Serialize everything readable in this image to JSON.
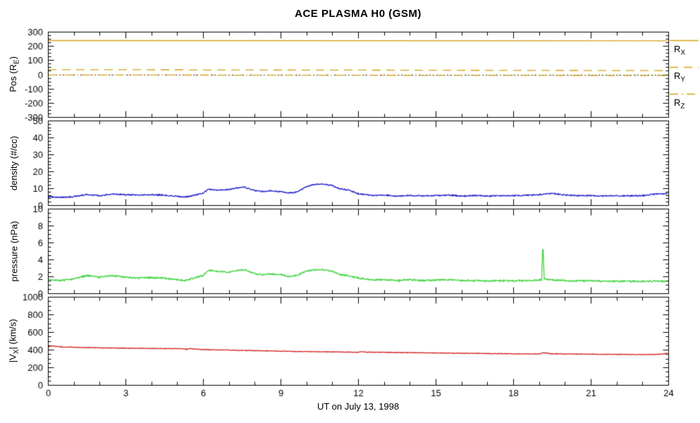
{
  "chart_data": {
    "type": "line",
    "title": "ACE PLASMA H0 (GSM)",
    "xlabel": "UT on July 13, 1998",
    "grid": false,
    "legend_position": "right-of-top-panel",
    "x": {
      "min": 0,
      "max": 24,
      "ticks": [
        0,
        3,
        6,
        9,
        12,
        15,
        18,
        21,
        24
      ],
      "minor_step": 1
    },
    "panels": [
      {
        "ylabel": {
          "pre": "Pos (R",
          "sub": "E",
          "post": ")"
        },
        "ylim": [
          -300,
          300
        ],
        "yticks": [
          -300,
          -200,
          -100,
          0,
          100,
          200,
          300
        ],
        "yminor": 25,
        "legend": [
          {
            "pre": "R",
            "sub": "X"
          },
          {
            "pre": "R",
            "sub": "Y"
          },
          {
            "pre": "R",
            "sub": "Z"
          }
        ],
        "ref_lines": [
          {
            "y": 0,
            "style": "dotted",
            "color": "#222222"
          }
        ],
        "series": [
          {
            "name": "R_X",
            "color": "#d4a017",
            "style": "solid",
            "noise": 0,
            "points": [
              [
                0,
                238
              ],
              [
                24,
                236
              ]
            ]
          },
          {
            "name": "R_Y",
            "color": "#d4a017",
            "style": "dashed",
            "noise": 0,
            "points": [
              [
                0,
                33
              ],
              [
                6,
                32
              ],
              [
                12,
                30
              ],
              [
                18,
                28
              ],
              [
                24,
                26
              ]
            ]
          },
          {
            "name": "R_Z",
            "color": "#d4a017",
            "style": "dashdot",
            "noise": 0,
            "points": [
              [
                0,
                -4
              ],
              [
                24,
                -8
              ]
            ]
          }
        ]
      },
      {
        "ylabel": {
          "pre": "density (#/cc)"
        },
        "ylim": [
          0,
          50
        ],
        "yticks": [
          0,
          10,
          20,
          30,
          40,
          50
        ],
        "yminor": 2,
        "series": [
          {
            "name": "density",
            "color": "#2222cc",
            "style": "solid",
            "noise": 0.35,
            "points": [
              [
                0,
                5.0
              ],
              [
                0.5,
                4.6
              ],
              [
                1,
                5.0
              ],
              [
                1.5,
                6.3
              ],
              [
                2,
                5.6
              ],
              [
                2.5,
                6.6
              ],
              [
                3,
                6.2
              ],
              [
                3.5,
                6.0
              ],
              [
                4,
                6.2
              ],
              [
                4.5,
                6.0
              ],
              [
                5,
                5.2
              ],
              [
                5.3,
                4.8
              ],
              [
                5.6,
                5.6
              ],
              [
                6,
                7.0
              ],
              [
                6.2,
                9.3
              ],
              [
                6.5,
                9.0
              ],
              [
                7,
                9.2
              ],
              [
                7.3,
                10.2
              ],
              [
                7.6,
                10.6
              ],
              [
                8,
                8.6
              ],
              [
                8.3,
                8.1
              ],
              [
                8.6,
                8.5
              ],
              [
                9,
                8.0
              ],
              [
                9.3,
                7.2
              ],
              [
                9.6,
                7.6
              ],
              [
                10,
                10.8
              ],
              [
                10.3,
                12.2
              ],
              [
                10.6,
                12.6
              ],
              [
                11,
                11.6
              ],
              [
                11.3,
                9.6
              ],
              [
                11.6,
                9.0
              ],
              [
                12,
                6.8
              ],
              [
                12.5,
                5.8
              ],
              [
                13,
                6.0
              ],
              [
                13.5,
                5.3
              ],
              [
                14,
                5.8
              ],
              [
                14.5,
                5.5
              ],
              [
                15,
                5.6
              ],
              [
                15.5,
                6.0
              ],
              [
                16,
                5.4
              ],
              [
                16.5,
                5.7
              ],
              [
                17,
                5.4
              ],
              [
                17.5,
                5.6
              ],
              [
                18,
                5.5
              ],
              [
                18.5,
                5.8
              ],
              [
                19,
                6.2
              ],
              [
                19.5,
                7.0
              ],
              [
                20,
                6.0
              ],
              [
                20.5,
                5.6
              ],
              [
                21,
                5.7
              ],
              [
                21.5,
                5.4
              ],
              [
                22,
                5.6
              ],
              [
                22.5,
                5.5
              ],
              [
                23,
                5.6
              ],
              [
                23.5,
                6.6
              ],
              [
                24,
                6.8
              ]
            ]
          }
        ]
      },
      {
        "ylabel": {
          "pre": "pressure (nPa)"
        },
        "ylim": [
          0,
          10
        ],
        "yticks": [
          0,
          2,
          4,
          6,
          8,
          10
        ],
        "yminor": 0.5,
        "series": [
          {
            "name": "pressure",
            "color": "#3fd43f",
            "style": "solid",
            "noise": 0.09,
            "points": [
              [
                0,
                1.6
              ],
              [
                0.5,
                1.5
              ],
              [
                1,
                1.7
              ],
              [
                1.5,
                2.1
              ],
              [
                2,
                1.9
              ],
              [
                2.5,
                2.1
              ],
              [
                3,
                1.9
              ],
              [
                3.5,
                1.8
              ],
              [
                4,
                1.85
              ],
              [
                4.5,
                1.8
              ],
              [
                5,
                1.6
              ],
              [
                5.3,
                1.5
              ],
              [
                5.6,
                1.75
              ],
              [
                6,
                2.1
              ],
              [
                6.2,
                2.7
              ],
              [
                6.5,
                2.6
              ],
              [
                7,
                2.5
              ],
              [
                7.3,
                2.7
              ],
              [
                7.6,
                2.8
              ],
              [
                8,
                2.3
              ],
              [
                8.3,
                2.2
              ],
              [
                8.6,
                2.3
              ],
              [
                9,
                2.2
              ],
              [
                9.3,
                2.0
              ],
              [
                9.6,
                2.1
              ],
              [
                10,
                2.6
              ],
              [
                10.3,
                2.8
              ],
              [
                10.6,
                2.8
              ],
              [
                11,
                2.6
              ],
              [
                11.3,
                2.2
              ],
              [
                11.6,
                2.1
              ],
              [
                12,
                1.8
              ],
              [
                12.5,
                1.6
              ],
              [
                13,
                1.6
              ],
              [
                13.5,
                1.5
              ],
              [
                14,
                1.6
              ],
              [
                14.5,
                1.5
              ],
              [
                15,
                1.55
              ],
              [
                15.5,
                1.6
              ],
              [
                16,
                1.5
              ],
              [
                16.5,
                1.5
              ],
              [
                17,
                1.45
              ],
              [
                17.5,
                1.5
              ],
              [
                18,
                1.45
              ],
              [
                18.5,
                1.5
              ],
              [
                19,
                1.55
              ],
              [
                19.1,
                1.6
              ],
              [
                19.15,
                6.0
              ],
              [
                19.2,
                1.7
              ],
              [
                19.5,
                1.6
              ],
              [
                20,
                1.5
              ],
              [
                20.5,
                1.45
              ],
              [
                21,
                1.5
              ],
              [
                21.5,
                1.4
              ],
              [
                22,
                1.45
              ],
              [
                22.5,
                1.4
              ],
              [
                23,
                1.4
              ],
              [
                23.5,
                1.45
              ],
              [
                24,
                1.4
              ]
            ]
          }
        ]
      },
      {
        "ylabel": {
          "pre": "|V",
          "sub": "X",
          "post": "| (km/s)"
        },
        "ylim": [
          0,
          1000
        ],
        "yticks": [
          0,
          200,
          400,
          600,
          800,
          1000
        ],
        "yminor": 50,
        "series": [
          {
            "name": "|V_X|",
            "color": "#d42222",
            "style": "solid",
            "noise": 3,
            "points": [
              [
                0,
                432
              ],
              [
                0.15,
                444
              ],
              [
                0.3,
                436
              ],
              [
                0.6,
                430
              ],
              [
                1,
                427
              ],
              [
                1.5,
                424
              ],
              [
                2,
                421
              ],
              [
                2.5,
                419
              ],
              [
                3,
                417
              ],
              [
                3.5,
                416
              ],
              [
                4,
                414
              ],
              [
                4.5,
                413
              ],
              [
                5,
                412
              ],
              [
                5.2,
                412
              ],
              [
                5.35,
                404
              ],
              [
                5.5,
                414
              ],
              [
                5.7,
                407
              ],
              [
                6,
                402
              ],
              [
                6.5,
                398
              ],
              [
                7,
                395
              ],
              [
                7.5,
                392
              ],
              [
                8,
                389
              ],
              [
                8.5,
                386
              ],
              [
                9,
                383
              ],
              [
                9.5,
                380
              ],
              [
                10,
                378
              ],
              [
                10.5,
                377
              ],
              [
                11,
                375
              ],
              [
                11.5,
                373
              ],
              [
                12,
                370
              ],
              [
                12.1,
                376
              ],
              [
                12.3,
                372
              ],
              [
                13,
                370
              ],
              [
                13.5,
                368
              ],
              [
                14,
                366
              ],
              [
                14.5,
                365
              ],
              [
                15,
                363
              ],
              [
                15.5,
                361
              ],
              [
                16,
                359
              ],
              [
                16.5,
                358
              ],
              [
                17,
                356
              ],
              [
                17.5,
                355
              ],
              [
                18,
                353
              ],
              [
                18.5,
                352
              ],
              [
                19,
                352
              ],
              [
                19.2,
                367
              ],
              [
                19.4,
                355
              ],
              [
                20,
                352
              ],
              [
                20.5,
                350
              ],
              [
                21,
                349
              ],
              [
                21.5,
                348
              ],
              [
                22,
                347
              ],
              [
                22.5,
                346
              ],
              [
                23,
                345
              ],
              [
                23.5,
                346
              ],
              [
                23.8,
                352
              ],
              [
                24,
                361
              ]
            ]
          }
        ]
      }
    ]
  }
}
